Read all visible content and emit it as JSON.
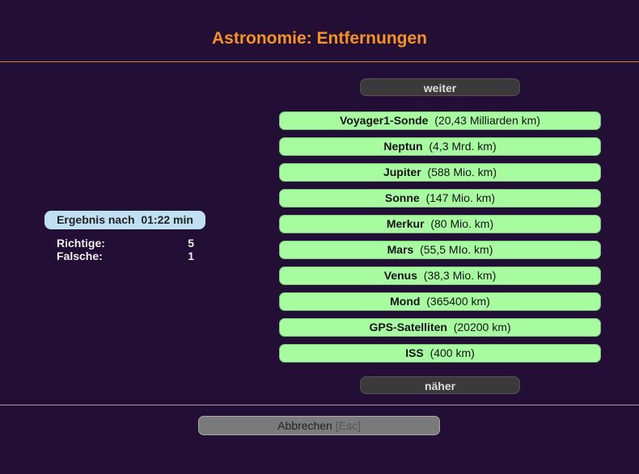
{
  "title": "Astronomie: Entfernungen",
  "buttons": {
    "further": "weiter",
    "closer": "näher",
    "cancel": "Abbrechen",
    "cancel_key": "[Esc]"
  },
  "result": {
    "label": "Ergebnis nach",
    "time": "01:22 min",
    "correct_label": "Richtige:",
    "correct": "5",
    "wrong_label": "Falsche:",
    "wrong": "1"
  },
  "items": [
    {
      "name": "Voyager1-Sonde",
      "distance": "(20,43 Milliarden km)"
    },
    {
      "name": "Neptun",
      "distance": "(4,3 Mrd. km)"
    },
    {
      "name": "Jupiter",
      "distance": "(588 Mio. km)"
    },
    {
      "name": "Sonne",
      "distance": "(147 Mio. km)"
    },
    {
      "name": "Merkur",
      "distance": "(80 Mio. km)"
    },
    {
      "name": "Mars",
      "distance": "(55,5 MIo. km)"
    },
    {
      "name": "Venus",
      "distance": "(38,3 Mio. km)"
    },
    {
      "name": "Mond",
      "distance": "(365400 km)"
    },
    {
      "name": "GPS-Satelliten",
      "distance": "(20200 km)"
    },
    {
      "name": "ISS",
      "distance": "(400 km)"
    }
  ],
  "colors": {
    "background": "#230f35",
    "title": "#f7941d",
    "item": "#a8fca0",
    "result": "#bfe0f2"
  }
}
